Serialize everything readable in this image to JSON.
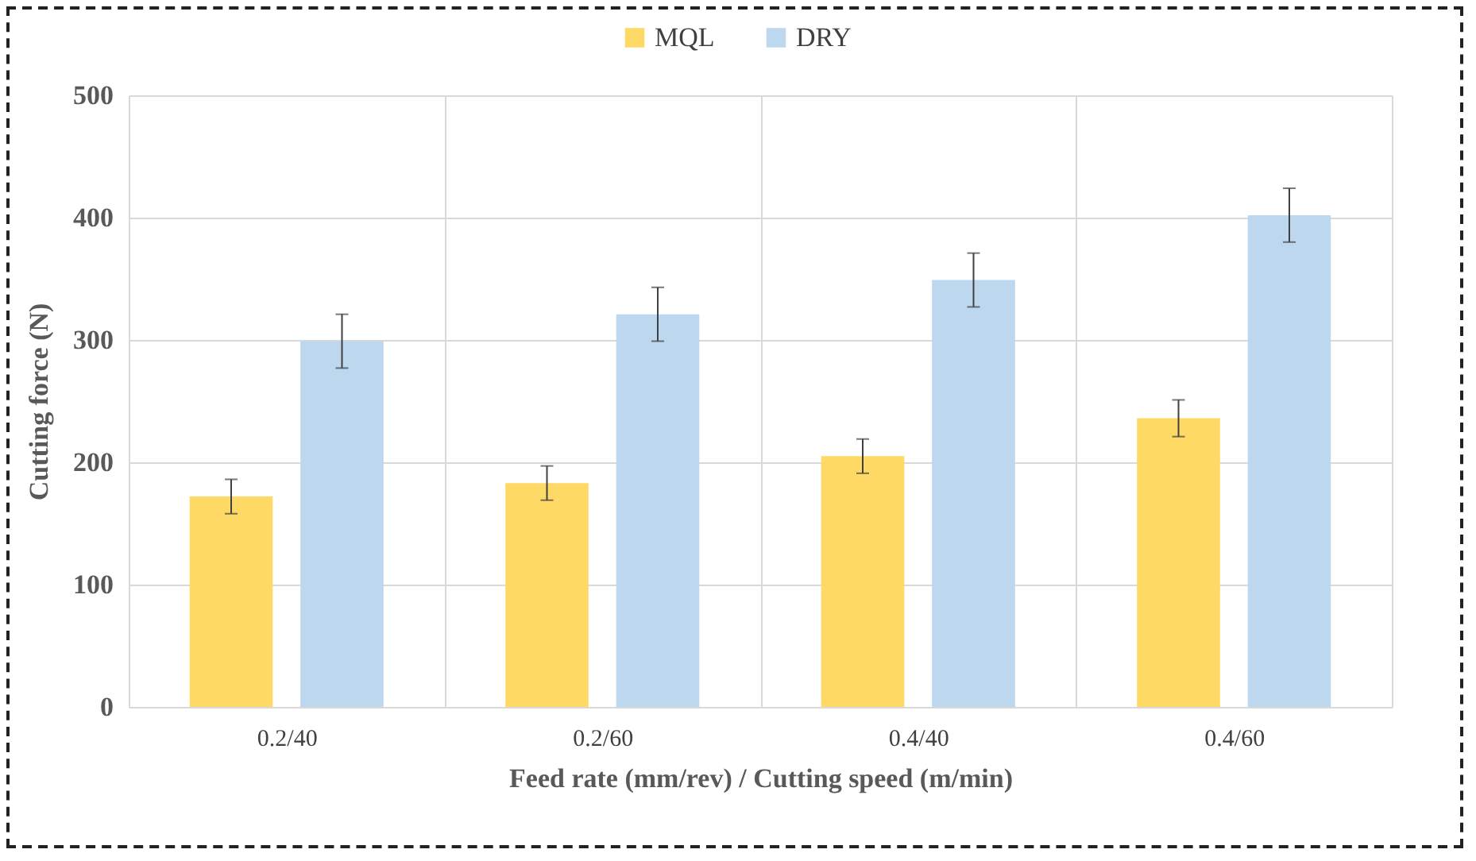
{
  "chart_data": {
    "type": "bar",
    "xlabel": "Feed rate (mm/rev) / Cutting speed (m/min)",
    "ylabel": "Cutting force (N)",
    "categories": [
      "0.2/40",
      "0.2/60",
      "0.4/40",
      "0.4/60"
    ],
    "series": [
      {
        "name": "MQL",
        "color": "#ffd966",
        "values": [
          172,
          183,
          205,
          236
        ],
        "errors": [
          14,
          14,
          14,
          15
        ]
      },
      {
        "name": "DRY",
        "color": "#bdd7ee",
        "values": [
          299,
          321,
          349,
          402
        ],
        "errors": [
          22,
          22,
          22,
          22
        ]
      }
    ],
    "ylim": [
      0,
      500
    ],
    "yticks": [
      0,
      100,
      200,
      300,
      400,
      500
    ],
    "grid": true,
    "legend": "top"
  }
}
